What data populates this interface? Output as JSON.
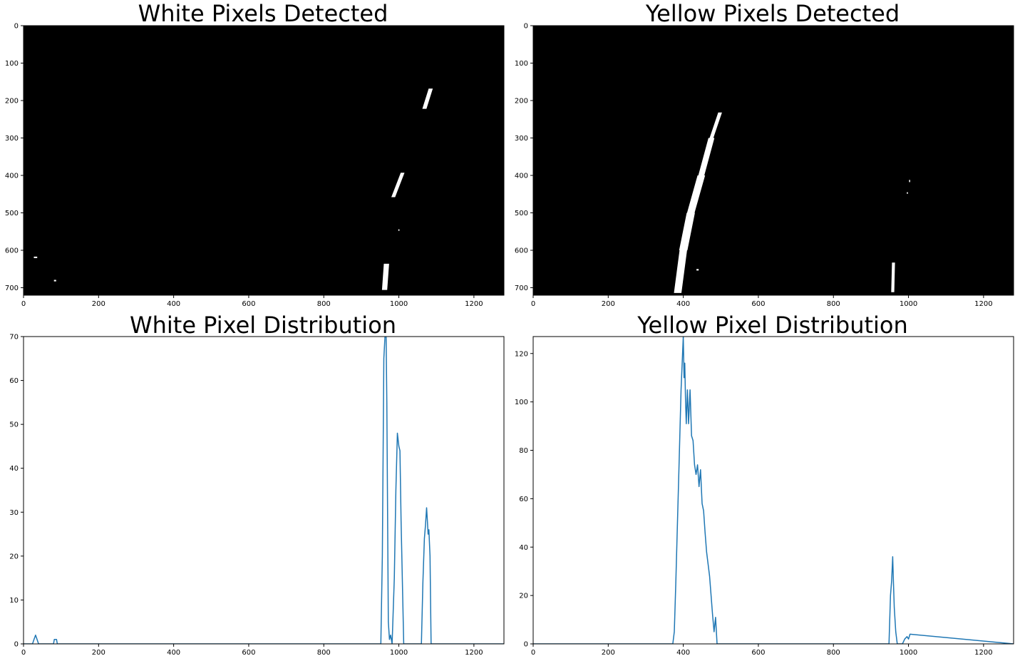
{
  "chart_data": [
    {
      "id": "white-detected",
      "type": "heatmap",
      "title": "White Pixels Detected",
      "xlim": [
        0,
        1280
      ],
      "ylim": [
        720,
        0
      ],
      "xticks": [
        0,
        200,
        400,
        600,
        800,
        1000,
        1200
      ],
      "yticks": [
        0,
        100,
        200,
        300,
        400,
        500,
        600,
        700
      ],
      "background": "#000000",
      "foreground": "#ffffff",
      "blobs": [
        {
          "y0": 168,
          "y1": 222,
          "xTop": 1085,
          "xBottom": 1068,
          "w": 11
        },
        {
          "y0": 393,
          "y1": 458,
          "xTop": 1010,
          "xBottom": 985,
          "w": 10
        },
        {
          "y0": 636,
          "y1": 706,
          "xTop": 967,
          "xBottom": 962,
          "w": 14
        },
        {
          "y0": 544,
          "y1": 548,
          "xTop": 1000,
          "xBottom": 1000,
          "w": 3
        },
        {
          "y0": 617,
          "y1": 621,
          "xTop": 32,
          "xBottom": 32,
          "w": 9
        },
        {
          "y0": 679,
          "y1": 683,
          "xTop": 84,
          "xBottom": 84,
          "w": 6
        }
      ]
    },
    {
      "id": "yellow-detected",
      "type": "heatmap",
      "title": "Yellow Pixels Detected",
      "xlim": [
        0,
        1280
      ],
      "ylim": [
        720,
        0
      ],
      "xticks": [
        0,
        200,
        400,
        600,
        800,
        1000,
        1200
      ],
      "yticks": [
        0,
        100,
        200,
        300,
        400,
        500,
        600,
        700
      ],
      "background": "#000000",
      "foreground": "#ffffff",
      "blobs": [
        {
          "y0": 232,
          "y1": 300,
          "xTop": 498,
          "xBottom": 475,
          "w": 10
        },
        {
          "y0": 300,
          "y1": 400,
          "xTop": 475,
          "xBottom": 448,
          "w": 16
        },
        {
          "y0": 400,
          "y1": 500,
          "xTop": 448,
          "xBottom": 420,
          "w": 20
        },
        {
          "y0": 500,
          "y1": 600,
          "xTop": 420,
          "xBottom": 400,
          "w": 22
        },
        {
          "y0": 600,
          "y1": 714,
          "xTop": 400,
          "xBottom": 385,
          "w": 20
        },
        {
          "y0": 633,
          "y1": 712,
          "xTop": 960,
          "xBottom": 958,
          "w": 8
        },
        {
          "y0": 412,
          "y1": 418,
          "xTop": 1003,
          "xBottom": 1003,
          "w": 3
        },
        {
          "y0": 445,
          "y1": 449,
          "xTop": 997,
          "xBottom": 997,
          "w": 3
        },
        {
          "y0": 650,
          "y1": 654,
          "xTop": 438,
          "xBottom": 438,
          "w": 6
        }
      ]
    },
    {
      "id": "white-distribution",
      "type": "line",
      "title": "White Pixel Distribution",
      "xlim": [
        0,
        1280
      ],
      "ylim": [
        0,
        70
      ],
      "xticks": [
        0,
        200,
        400,
        600,
        800,
        1000,
        1200
      ],
      "yticks": [
        0,
        10,
        20,
        30,
        40,
        50,
        60,
        70
      ],
      "color": "#1f77b4",
      "series": [
        {
          "x": [
            0,
            24,
            28,
            32,
            36,
            40,
            80,
            82,
            88,
            90,
            952,
            956,
            960,
            963,
            966,
            968,
            972,
            975,
            978,
            982,
            988,
            992,
            996,
            1000,
            1003,
            1006,
            1010,
            1013,
            1017,
            1020,
            1060,
            1064,
            1068,
            1071,
            1074,
            1076,
            1078,
            1080,
            1083,
            1086,
            1090,
            1094,
            1280
          ],
          "y": [
            0,
            0,
            1,
            2,
            1,
            0,
            0,
            1,
            1,
            0,
            0,
            20,
            65,
            70,
            70,
            55,
            5,
            1,
            2,
            0,
            15,
            35,
            48,
            45,
            44,
            28,
            12,
            0,
            0,
            0,
            0,
            14,
            24,
            27,
            31,
            28,
            25,
            26,
            20,
            0,
            0,
            0,
            0
          ]
        }
      ]
    },
    {
      "id": "yellow-distribution",
      "type": "line",
      "title": "Yellow Pixel Distribution",
      "xlim": [
        0,
        1280
      ],
      "ylim": [
        0,
        127
      ],
      "xticks": [
        0,
        200,
        400,
        600,
        800,
        1000,
        1200
      ],
      "yticks": [
        0,
        20,
        40,
        60,
        80,
        100,
        120
      ],
      "color": "#1f77b4",
      "series": [
        {
          "x": [
            0,
            372,
            376,
            380,
            388,
            394,
            398,
            400,
            402,
            404,
            406,
            408,
            411,
            414,
            418,
            422,
            426,
            430,
            434,
            438,
            442,
            446,
            450,
            454,
            458,
            462,
            466,
            470,
            474,
            478,
            482,
            486,
            490,
            494,
            497,
            500,
            506,
            948,
            952,
            955,
            958,
            960,
            962,
            966,
            970,
            984,
            990,
            996,
            1000,
            1004,
            1280
          ],
          "y": [
            0,
            0,
            5,
            25,
            70,
            105,
            120,
            127,
            110,
            116,
            100,
            91,
            105,
            91,
            105,
            86,
            84,
            74,
            70,
            74,
            65,
            72,
            58,
            55,
            46,
            38,
            33,
            28,
            20,
            12,
            5,
            11,
            0,
            0,
            0,
            0,
            0,
            0,
            20,
            26,
            36,
            25,
            15,
            5,
            0,
            0,
            2,
            3,
            2,
            4,
            0
          ]
        }
      ]
    }
  ]
}
